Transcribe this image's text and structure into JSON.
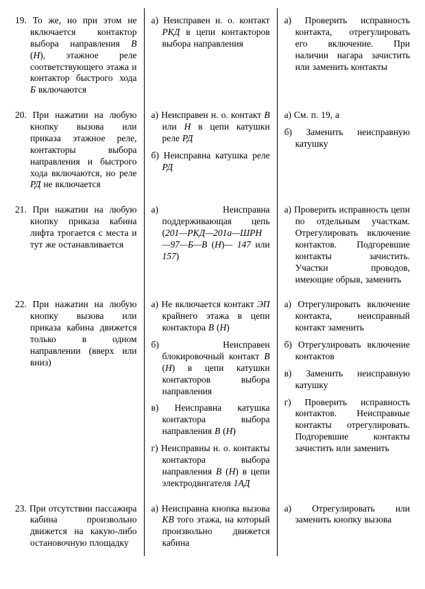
{
  "rows": [
    {
      "c1": [
        {
          "kind": "num",
          "n": "19.",
          "text": "То же, но при этом не включается контактор выбора направления <i>В</i> (<i>Н</i>), этажное реле соответствующего этажа и контактор быстрого хода <i>Б</i> включаются"
        }
      ],
      "c2": [
        {
          "kind": "sub",
          "n": "а)",
          "text": "Неисправен н. о. контакт <i>РКД</i> в цепи контакторов выбора направления"
        }
      ],
      "c3": [
        {
          "kind": "sub",
          "n": "а)",
          "text": "Проверить исправность контакта, отрегулировать его включение. При наличии нагара зачистить или заменить контакты"
        }
      ]
    },
    {
      "c1": [
        {
          "kind": "num",
          "n": "20.",
          "text": "При нажатии на любую кнопку вызова или приказа этажное реле, контакторы выбора направления и быстрого хода включаются, но реле <i>РД</i> не включается"
        }
      ],
      "c2": [
        {
          "kind": "sub",
          "n": "а)",
          "text": "Неисправен н. о. контакт <i>В</i> или <i>Н</i> в цепи катушки реле <i>РД</i>"
        },
        {
          "kind": "sub",
          "n": "б)",
          "text": "Неисправна катушка реле <i>РД</i>"
        }
      ],
      "c3": [
        {
          "kind": "sub",
          "n": "а)",
          "text": "См. п. 19, а"
        },
        {
          "kind": "sub",
          "n": "б)",
          "text": "Заменить неисправную катушку"
        }
      ]
    },
    {
      "c1": [
        {
          "kind": "num",
          "n": "21.",
          "text": "При нажатии на любую кнопку приказа кабина лифта трогается с места и тут же останавливается"
        }
      ],
      "c2": [
        {
          "kind": "sub",
          "n": "а)",
          "text": "Неисправна поддерживающая цепь (<i>201—РКД—201а—ШРН—97—Б—В</i> (<i>Н</i>)<i>— 147</i> или <i>157</i>)"
        }
      ],
      "c3": [
        {
          "kind": "sub",
          "n": "а)",
          "text": "Проверить исправность цепи по отдельным участкам. Отрегулировать включение контактов. Подгоревшие контакты зачистить. Участки проводов, имеющие обрыв, заменить"
        }
      ]
    },
    {
      "c1": [
        {
          "kind": "num",
          "n": "22.",
          "text": "При нажатии на любую кнопку вызова или приказа кабина движется только в одном направлении (вверх или вниз)"
        }
      ],
      "c2": [
        {
          "kind": "sub",
          "n": "а)",
          "text": "Не включается контакт <i>ЭП</i> крайнего этажа в цепи контактора <i>В</i> (<i>Н</i>)"
        },
        {
          "kind": "sub",
          "n": "б)",
          "text": "Неисправен блокировочный контакт <i>В</i> (<i>Н</i>) в цепи катушки контакторов выбора направления"
        },
        {
          "kind": "sub",
          "n": "в)",
          "text": "Неисправна катушка контактора выбора направления <i>В</i> (<i>Н</i>)"
        },
        {
          "kind": "sub",
          "n": "г)",
          "text": "Неисправны н. о. контакты контактора выбора направления <i>В</i> (<i>Н</i>) в цепи электродвигателя <i>1АД</i>"
        }
      ],
      "c3": [
        {
          "kind": "sub",
          "n": "а)",
          "text": "Отрегулировать включение контакта, неисправный контакт заменить"
        },
        {
          "kind": "sub",
          "n": "б)",
          "text": "Отрегулировать включение контактов"
        },
        {
          "kind": "sub",
          "n": "в)",
          "text": "Заменить неисправную катушку"
        },
        {
          "kind": "sub",
          "n": "г)",
          "text": "Проверить исправность контактов. Неисправные контакты отрегулировать. Подгоревшие контакты зачистить или заменить"
        }
      ]
    },
    {
      "c1": [
        {
          "kind": "num",
          "n": "23.",
          "text": "При отсутствии пассажира кабина произвольно движется на какую-либо остановочную площадку"
        }
      ],
      "c2": [
        {
          "kind": "sub",
          "n": "а)",
          "text": "Неисправна кнопка вызова <i>КВ</i> того этажа, на который произвольно движется кабина"
        }
      ],
      "c3": [
        {
          "kind": "sub",
          "n": "а)",
          "text": "Отрегулировать или заменить кнопку вызова"
        }
      ]
    }
  ]
}
